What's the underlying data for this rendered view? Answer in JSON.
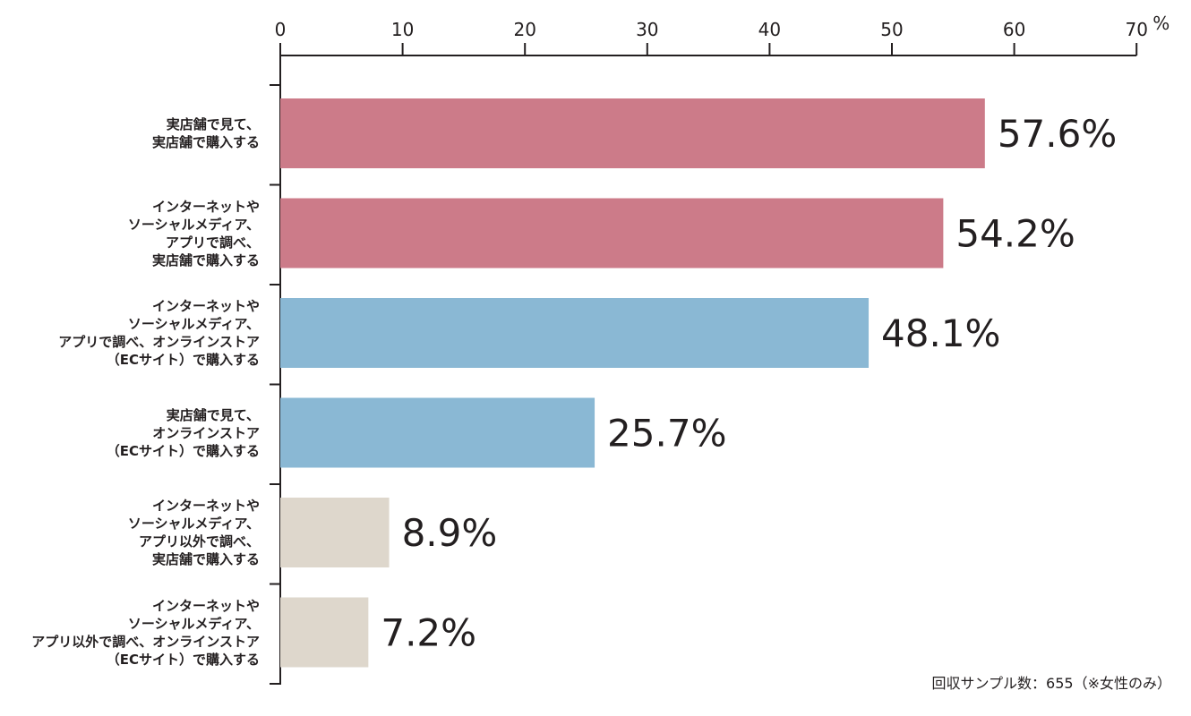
{
  "chart_data": {
    "type": "bar",
    "orientation": "horizontal",
    "xlim": [
      0,
      70
    ],
    "x_ticks": [
      "0",
      "10",
      "20",
      "30",
      "40",
      "50",
      "60",
      "70"
    ],
    "x_unit": "%",
    "grid": false,
    "categories": [
      [
        "実店舗で見て、",
        "実店舗で購入する"
      ],
      [
        "インターネットや",
        "ソーシャルメディア、",
        "アプリで調べ、",
        "実店舗で購入する"
      ],
      [
        "インターネットや",
        "ソーシャルメディア、",
        "アプリで調べ、オンラインストア",
        "（ECサイト）で購入する"
      ],
      [
        "実店舗で見て、",
        "オンラインストア",
        "（ECサイト）で購入する"
      ],
      [
        "インターネットや",
        "ソーシャルメディア、",
        "アプリ以外で調べ、",
        "実店舗で購入する"
      ],
      [
        "インターネットや",
        "ソーシャルメディア、",
        "アプリ以外で調べ、オンラインストア",
        "（ECサイト）で購入する"
      ]
    ],
    "values": [
      57.6,
      54.2,
      48.1,
      25.7,
      8.9,
      7.2
    ],
    "value_labels": [
      "57.6%",
      "54.2%",
      "48.1%",
      "25.7%",
      "8.9%",
      "7.2%"
    ],
    "colors": [
      "#cc7b89",
      "#cc7b89",
      "#8ab8d4",
      "#8ab8d4",
      "#ded7cc",
      "#ded7cc"
    ],
    "note": "回収サンプル数：655（※女性のみ）"
  }
}
